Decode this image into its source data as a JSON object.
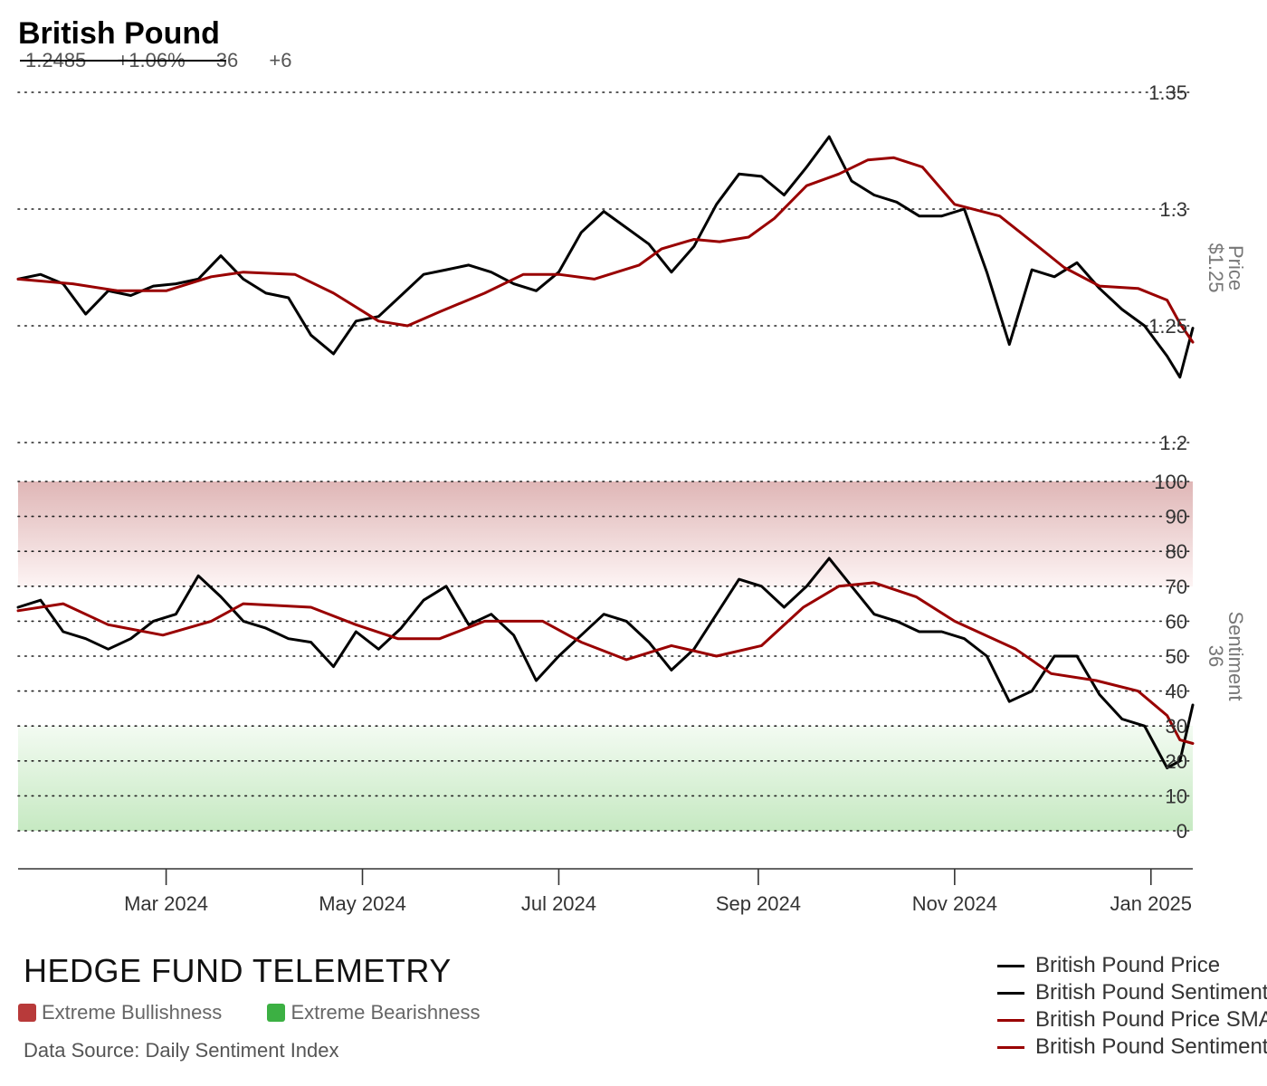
{
  "header": {
    "title": "British Pound",
    "price": "1.2485",
    "change_pct": "+1.06%",
    "sentiment": "36",
    "sentiment_change": "+6"
  },
  "branding": {
    "name": "HEDGE FUND TELEMETRY",
    "extreme_bull_label": "Extreme Bullishness",
    "extreme_bear_label": "Extreme Bearishness",
    "source": "Data Source: Daily Sentiment Index"
  },
  "colors": {
    "price_line": "#000000",
    "sma_line": "#990000",
    "extreme_bull": "#b83a3a",
    "extreme_bear": "#3cb043"
  },
  "chart_data": {
    "type": "line",
    "x_range": [
      "2024-01-15",
      "2025-01-14"
    ],
    "x_ticks": [
      {
        "date": "2024-03-01",
        "label": "Mar 2024"
      },
      {
        "date": "2024-05-01",
        "label": "May 2024"
      },
      {
        "date": "2024-07-01",
        "label": "Jul 2024"
      },
      {
        "date": "2024-09-01",
        "label": "Sep 2024"
      },
      {
        "date": "2024-11-01",
        "label": "Nov 2024"
      },
      {
        "date": "2025-01-01",
        "label": "Jan 2025"
      }
    ],
    "price_panel": {
      "axis_label": "Price",
      "axis_value": "$1.25",
      "ylim": [
        1.2,
        1.35
      ],
      "ticks": [
        {
          "value": 1.35,
          "label": "1.35"
        },
        {
          "value": 1.3,
          "label": "1.3"
        },
        {
          "value": 1.25,
          "label": "1.25"
        },
        {
          "value": 1.2,
          "label": "1.2"
        }
      ]
    },
    "sentiment_panel": {
      "axis_label": "Sentiment",
      "axis_value": "36",
      "ylim": [
        0,
        100
      ],
      "ticks": [
        100,
        90,
        80,
        70,
        60,
        50,
        40,
        30,
        20,
        10,
        0
      ]
    },
    "series": [
      {
        "name": "British Pound Price",
        "panel": "price",
        "points": [
          [
            "2024-01-15",
            1.27
          ],
          [
            "2024-01-22",
            1.272
          ],
          [
            "2024-01-29",
            1.268
          ],
          [
            "2024-02-05",
            1.255
          ],
          [
            "2024-02-12",
            1.265
          ],
          [
            "2024-02-19",
            1.263
          ],
          [
            "2024-02-26",
            1.267
          ],
          [
            "2024-03-04",
            1.268
          ],
          [
            "2024-03-11",
            1.27
          ],
          [
            "2024-03-18",
            1.28
          ],
          [
            "2024-03-25",
            1.27
          ],
          [
            "2024-04-01",
            1.264
          ],
          [
            "2024-04-08",
            1.262
          ],
          [
            "2024-04-15",
            1.246
          ],
          [
            "2024-04-22",
            1.238
          ],
          [
            "2024-04-29",
            1.252
          ],
          [
            "2024-05-06",
            1.254
          ],
          [
            "2024-05-13",
            1.263
          ],
          [
            "2024-05-20",
            1.272
          ],
          [
            "2024-05-27",
            1.274
          ],
          [
            "2024-06-03",
            1.276
          ],
          [
            "2024-06-10",
            1.273
          ],
          [
            "2024-06-17",
            1.268
          ],
          [
            "2024-06-24",
            1.265
          ],
          [
            "2024-07-01",
            1.273
          ],
          [
            "2024-07-08",
            1.29
          ],
          [
            "2024-07-15",
            1.299
          ],
          [
            "2024-07-22",
            1.292
          ],
          [
            "2024-07-29",
            1.285
          ],
          [
            "2024-08-05",
            1.273
          ],
          [
            "2024-08-12",
            1.284
          ],
          [
            "2024-08-19",
            1.302
          ],
          [
            "2024-08-26",
            1.315
          ],
          [
            "2024-09-02",
            1.314
          ],
          [
            "2024-09-09",
            1.306
          ],
          [
            "2024-09-16",
            1.318
          ],
          [
            "2024-09-23",
            1.331
          ],
          [
            "2024-09-30",
            1.312
          ],
          [
            "2024-10-07",
            1.306
          ],
          [
            "2024-10-14",
            1.303
          ],
          [
            "2024-10-21",
            1.297
          ],
          [
            "2024-10-28",
            1.297
          ],
          [
            "2024-11-04",
            1.3
          ],
          [
            "2024-11-11",
            1.273
          ],
          [
            "2024-11-18",
            1.242
          ],
          [
            "2024-11-25",
            1.274
          ],
          [
            "2024-12-02",
            1.271
          ],
          [
            "2024-12-09",
            1.277
          ],
          [
            "2024-12-16",
            1.266
          ],
          [
            "2024-12-23",
            1.257
          ],
          [
            "2024-12-30",
            1.25
          ],
          [
            "2025-01-06",
            1.237
          ],
          [
            "2025-01-10",
            1.228
          ],
          [
            "2025-01-14",
            1.249
          ]
        ]
      },
      {
        "name": "British Pound Sentiment",
        "panel": "sentiment",
        "points": [
          [
            "2024-01-15",
            64
          ],
          [
            "2024-01-22",
            66
          ],
          [
            "2024-01-29",
            57
          ],
          [
            "2024-02-05",
            55
          ],
          [
            "2024-02-12",
            52
          ],
          [
            "2024-02-19",
            55
          ],
          [
            "2024-02-26",
            60
          ],
          [
            "2024-03-04",
            62
          ],
          [
            "2024-03-11",
            73
          ],
          [
            "2024-03-18",
            67
          ],
          [
            "2024-03-25",
            60
          ],
          [
            "2024-04-01",
            58
          ],
          [
            "2024-04-08",
            55
          ],
          [
            "2024-04-15",
            54
          ],
          [
            "2024-04-22",
            47
          ],
          [
            "2024-04-29",
            57
          ],
          [
            "2024-05-06",
            52
          ],
          [
            "2024-05-13",
            58
          ],
          [
            "2024-05-20",
            66
          ],
          [
            "2024-05-27",
            70
          ],
          [
            "2024-06-03",
            59
          ],
          [
            "2024-06-10",
            62
          ],
          [
            "2024-06-17",
            56
          ],
          [
            "2024-06-24",
            43
          ],
          [
            "2024-07-01",
            50
          ],
          [
            "2024-07-08",
            56
          ],
          [
            "2024-07-15",
            62
          ],
          [
            "2024-07-22",
            60
          ],
          [
            "2024-07-29",
            54
          ],
          [
            "2024-08-05",
            46
          ],
          [
            "2024-08-12",
            52
          ],
          [
            "2024-08-19",
            62
          ],
          [
            "2024-08-26",
            72
          ],
          [
            "2024-09-02",
            70
          ],
          [
            "2024-09-09",
            64
          ],
          [
            "2024-09-16",
            70
          ],
          [
            "2024-09-23",
            78
          ],
          [
            "2024-09-30",
            70
          ],
          [
            "2024-10-07",
            62
          ],
          [
            "2024-10-14",
            60
          ],
          [
            "2024-10-21",
            57
          ],
          [
            "2024-10-28",
            57
          ],
          [
            "2024-11-04",
            55
          ],
          [
            "2024-11-11",
            50
          ],
          [
            "2024-11-18",
            37
          ],
          [
            "2024-11-25",
            40
          ],
          [
            "2024-12-02",
            50
          ],
          [
            "2024-12-09",
            50
          ],
          [
            "2024-12-16",
            39
          ],
          [
            "2024-12-23",
            32
          ],
          [
            "2024-12-30",
            30
          ],
          [
            "2025-01-06",
            18
          ],
          [
            "2025-01-10",
            20
          ],
          [
            "2025-01-14",
            36
          ]
        ]
      },
      {
        "name": "British Pound Price SMA",
        "panel": "price",
        "points": [
          [
            "2024-01-15",
            1.27
          ],
          [
            "2024-02-01",
            1.268
          ],
          [
            "2024-02-15",
            1.265
          ],
          [
            "2024-03-01",
            1.265
          ],
          [
            "2024-03-15",
            1.271
          ],
          [
            "2024-03-25",
            1.273
          ],
          [
            "2024-04-10",
            1.272
          ],
          [
            "2024-04-22",
            1.264
          ],
          [
            "2024-05-06",
            1.252
          ],
          [
            "2024-05-15",
            1.25
          ],
          [
            "2024-05-25",
            1.256
          ],
          [
            "2024-06-08",
            1.264
          ],
          [
            "2024-06-20",
            1.272
          ],
          [
            "2024-07-01",
            1.272
          ],
          [
            "2024-07-12",
            1.27
          ],
          [
            "2024-07-26",
            1.276
          ],
          [
            "2024-08-02",
            1.283
          ],
          [
            "2024-08-12",
            1.287
          ],
          [
            "2024-08-20",
            1.286
          ],
          [
            "2024-08-29",
            1.288
          ],
          [
            "2024-09-06",
            1.296
          ],
          [
            "2024-09-16",
            1.31
          ],
          [
            "2024-09-26",
            1.315
          ],
          [
            "2024-10-05",
            1.321
          ],
          [
            "2024-10-13",
            1.322
          ],
          [
            "2024-10-22",
            1.318
          ],
          [
            "2024-11-01",
            1.302
          ],
          [
            "2024-11-15",
            1.297
          ],
          [
            "2024-11-26",
            1.285
          ],
          [
            "2024-12-05",
            1.275
          ],
          [
            "2024-12-16",
            1.267
          ],
          [
            "2024-12-28",
            1.266
          ],
          [
            "2025-01-06",
            1.261
          ],
          [
            "2025-01-10",
            1.251
          ],
          [
            "2025-01-14",
            1.243
          ]
        ]
      },
      {
        "name": "British Pound Sentiment SMA",
        "panel": "sentiment",
        "points": [
          [
            "2024-01-15",
            63
          ],
          [
            "2024-01-29",
            65
          ],
          [
            "2024-02-12",
            59
          ],
          [
            "2024-02-29",
            56
          ],
          [
            "2024-03-15",
            60
          ],
          [
            "2024-03-25",
            65
          ],
          [
            "2024-04-15",
            64
          ],
          [
            "2024-04-29",
            59
          ],
          [
            "2024-05-12",
            55
          ],
          [
            "2024-05-25",
            55
          ],
          [
            "2024-06-08",
            60
          ],
          [
            "2024-06-26",
            60
          ],
          [
            "2024-07-08",
            54
          ],
          [
            "2024-07-22",
            49
          ],
          [
            "2024-08-05",
            53
          ],
          [
            "2024-08-19",
            50
          ],
          [
            "2024-09-02",
            53
          ],
          [
            "2024-09-15",
            64
          ],
          [
            "2024-09-26",
            70
          ],
          [
            "2024-10-07",
            71
          ],
          [
            "2024-10-20",
            67
          ],
          [
            "2024-11-01",
            60
          ],
          [
            "2024-11-20",
            52
          ],
          [
            "2024-12-01",
            45
          ],
          [
            "2024-12-15",
            43
          ],
          [
            "2024-12-28",
            40
          ],
          [
            "2025-01-06",
            33
          ],
          [
            "2025-01-10",
            26
          ],
          [
            "2025-01-14",
            25
          ]
        ]
      }
    ],
    "legend_position": "bottom-right"
  }
}
